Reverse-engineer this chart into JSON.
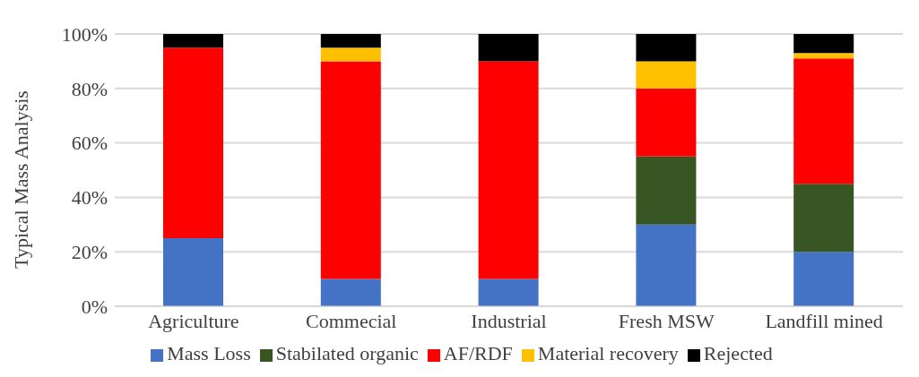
{
  "chart_data": {
    "type": "bar",
    "stacked": true,
    "ylabel": "Typical Mass Analysis",
    "categories": [
      "Agriculture",
      "Commecial",
      "Industrial",
      "Fresh MSW",
      "Landfill mined"
    ],
    "series": [
      {
        "name": "Mass Loss",
        "color": "#4472c4",
        "values": [
          25,
          10,
          10,
          30,
          20
        ]
      },
      {
        "name": "Stabilated organic",
        "color": "#375623",
        "values": [
          0,
          0,
          0,
          25,
          25
        ]
      },
      {
        "name": "AF/RDF",
        "color": "#ff0000",
        "values": [
          70,
          80,
          80,
          25,
          46
        ]
      },
      {
        "name": "Material recovery",
        "color": "#ffc000",
        "values": [
          0,
          5,
          0,
          10,
          2
        ]
      },
      {
        "name": "Rejected",
        "color": "#000000",
        "values": [
          5,
          5,
          10,
          10,
          7
        ]
      }
    ],
    "ylim": [
      0,
      100
    ],
    "yticks": [
      {
        "value": 0,
        "label": "0%"
      },
      {
        "value": 20,
        "label": "20%"
      },
      {
        "value": 40,
        "label": "40%"
      },
      {
        "value": 60,
        "label": "60%"
      },
      {
        "value": 80,
        "label": "80%"
      },
      {
        "value": 100,
        "label": "100%"
      }
    ],
    "grid": "y",
    "legend": "bottom"
  }
}
